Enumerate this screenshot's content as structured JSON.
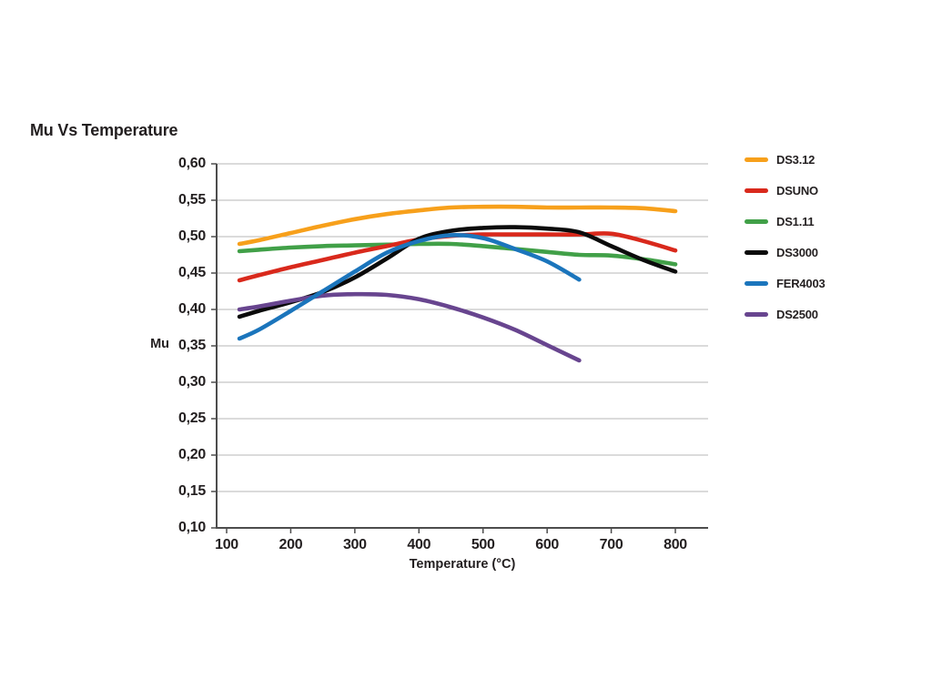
{
  "chart_data": {
    "type": "line",
    "title": "Mu Vs Temperature",
    "xlabel": "Temperature (°C)",
    "ylabel": "Mu",
    "x_axis": {
      "min": 100,
      "max": 800,
      "tick_labels": [
        "100",
        "200",
        "300",
        "400",
        "500",
        "600",
        "700",
        "800"
      ],
      "tick_values": [
        100,
        200,
        300,
        400,
        500,
        600,
        700,
        800
      ]
    },
    "y_axis": {
      "min": 0.1,
      "max": 0.6,
      "tick_labels": [
        "0,60",
        "0,55",
        "0,50",
        "0,45",
        "0,40",
        "0,35",
        "0,30",
        "0,25",
        "0,20",
        "0,15",
        "0,10"
      ],
      "tick_values": [
        0.6,
        0.55,
        0.5,
        0.45,
        0.4,
        0.35,
        0.3,
        0.25,
        0.2,
        0.15,
        0.1
      ]
    },
    "grid": true,
    "legend_position": "right",
    "colors": {
      "grid": "#b7b7b7",
      "axis": "#4d4d4d",
      "text": "#231f20"
    },
    "series": [
      {
        "name": "DS3.12",
        "color": "#F7A01B",
        "x": [
          120,
          150,
          200,
          250,
          300,
          350,
          400,
          450,
          500,
          550,
          600,
          650,
          700,
          750,
          800
        ],
        "values": [
          0.49,
          0.495,
          0.505,
          0.515,
          0.524,
          0.531,
          0.536,
          0.54,
          0.541,
          0.541,
          0.54,
          0.54,
          0.54,
          0.539,
          0.535
        ]
      },
      {
        "name": "DSUNO",
        "color": "#D9291C",
        "x": [
          120,
          150,
          200,
          250,
          300,
          350,
          400,
          450,
          500,
          550,
          600,
          650,
          700,
          750,
          800
        ],
        "values": [
          0.44,
          0.447,
          0.458,
          0.468,
          0.478,
          0.487,
          0.496,
          0.501,
          0.503,
          0.503,
          0.503,
          0.503,
          0.504,
          0.494,
          0.481
        ]
      },
      {
        "name": "DS1.11",
        "color": "#41A048",
        "x": [
          120,
          150,
          200,
          250,
          300,
          350,
          400,
          450,
          500,
          550,
          600,
          650,
          700,
          750,
          800
        ],
        "values": [
          0.48,
          0.482,
          0.485,
          0.487,
          0.488,
          0.489,
          0.49,
          0.49,
          0.487,
          0.483,
          0.479,
          0.475,
          0.474,
          0.469,
          0.462
        ]
      },
      {
        "name": "DS3000",
        "color": "#0B0B0B",
        "x": [
          120,
          150,
          200,
          250,
          300,
          350,
          400,
          450,
          500,
          550,
          600,
          650,
          700,
          750,
          800
        ],
        "values": [
          0.39,
          0.398,
          0.41,
          0.424,
          0.444,
          0.47,
          0.497,
          0.508,
          0.512,
          0.513,
          0.511,
          0.506,
          0.487,
          0.468,
          0.452
        ]
      },
      {
        "name": "FER4003",
        "color": "#1B75BC",
        "x": [
          120,
          150,
          200,
          250,
          300,
          350,
          400,
          450,
          500,
          550,
          600,
          650
        ],
        "values": [
          0.36,
          0.372,
          0.398,
          0.425,
          0.452,
          0.478,
          0.494,
          0.502,
          0.498,
          0.483,
          0.466,
          0.441
        ]
      },
      {
        "name": "DS2500",
        "color": "#68458F",
        "x": [
          120,
          150,
          200,
          250,
          300,
          350,
          400,
          450,
          500,
          550,
          600,
          650
        ],
        "values": [
          0.4,
          0.404,
          0.412,
          0.419,
          0.421,
          0.42,
          0.414,
          0.403,
          0.389,
          0.372,
          0.351,
          0.33
        ]
      }
    ],
    "paint_order": [
      "DS1.11",
      "DSUNO",
      "DS3000",
      "DS2500",
      "FER4003",
      "DS3.12"
    ]
  }
}
